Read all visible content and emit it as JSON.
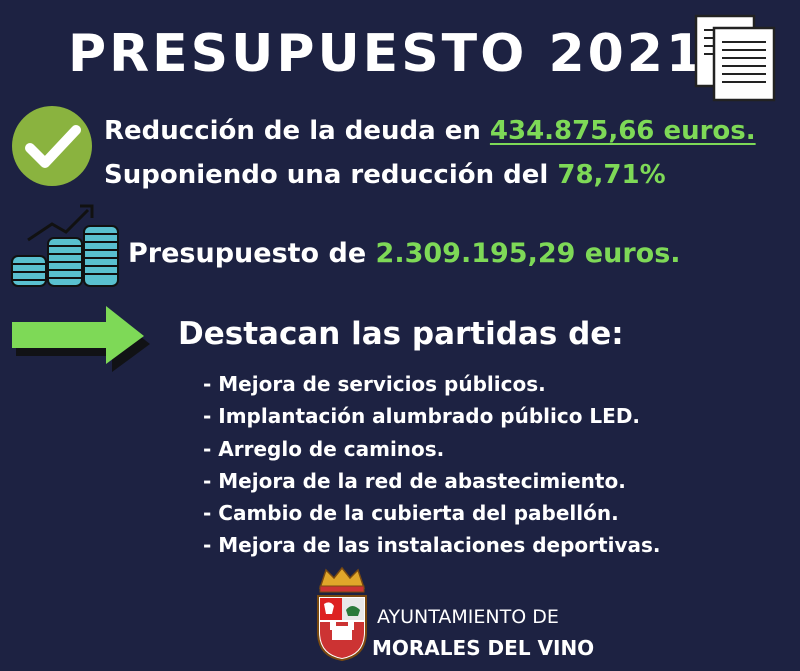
{
  "title": "PRESUPUESTO 2021",
  "debt": {
    "prefix": "Reducción de la deuda en ",
    "amount": "434.875,66 euros.",
    "line2_prefix": "Suponiendo una reducción del ",
    "percent": "78,71%"
  },
  "budget": {
    "prefix": "Presupuesto de ",
    "amount": "2.309.195,29 euros."
  },
  "highlights": {
    "heading": "Destacan las partidas de:",
    "items": [
      "- Mejora de servicios públicos.",
      "- Implantación alumbrado público LED.",
      "- Arreglo de caminos.",
      "- Mejora de la red de abastecimiento.",
      "- Cambio de la cubierta del pabellón.",
      "- Mejora de las instalaciones deportivas."
    ]
  },
  "organization": {
    "line1": "AYUNTAMIENTO DE",
    "line2": "MORALES DEL VINO"
  },
  "colors": {
    "background": "#1d2242",
    "accent_green": "#7ed957",
    "text": "#ffffff"
  },
  "icons": [
    "documents-icon",
    "check-circle-icon",
    "coins-growth-icon",
    "right-arrow-icon",
    "coat-of-arms-icon"
  ]
}
